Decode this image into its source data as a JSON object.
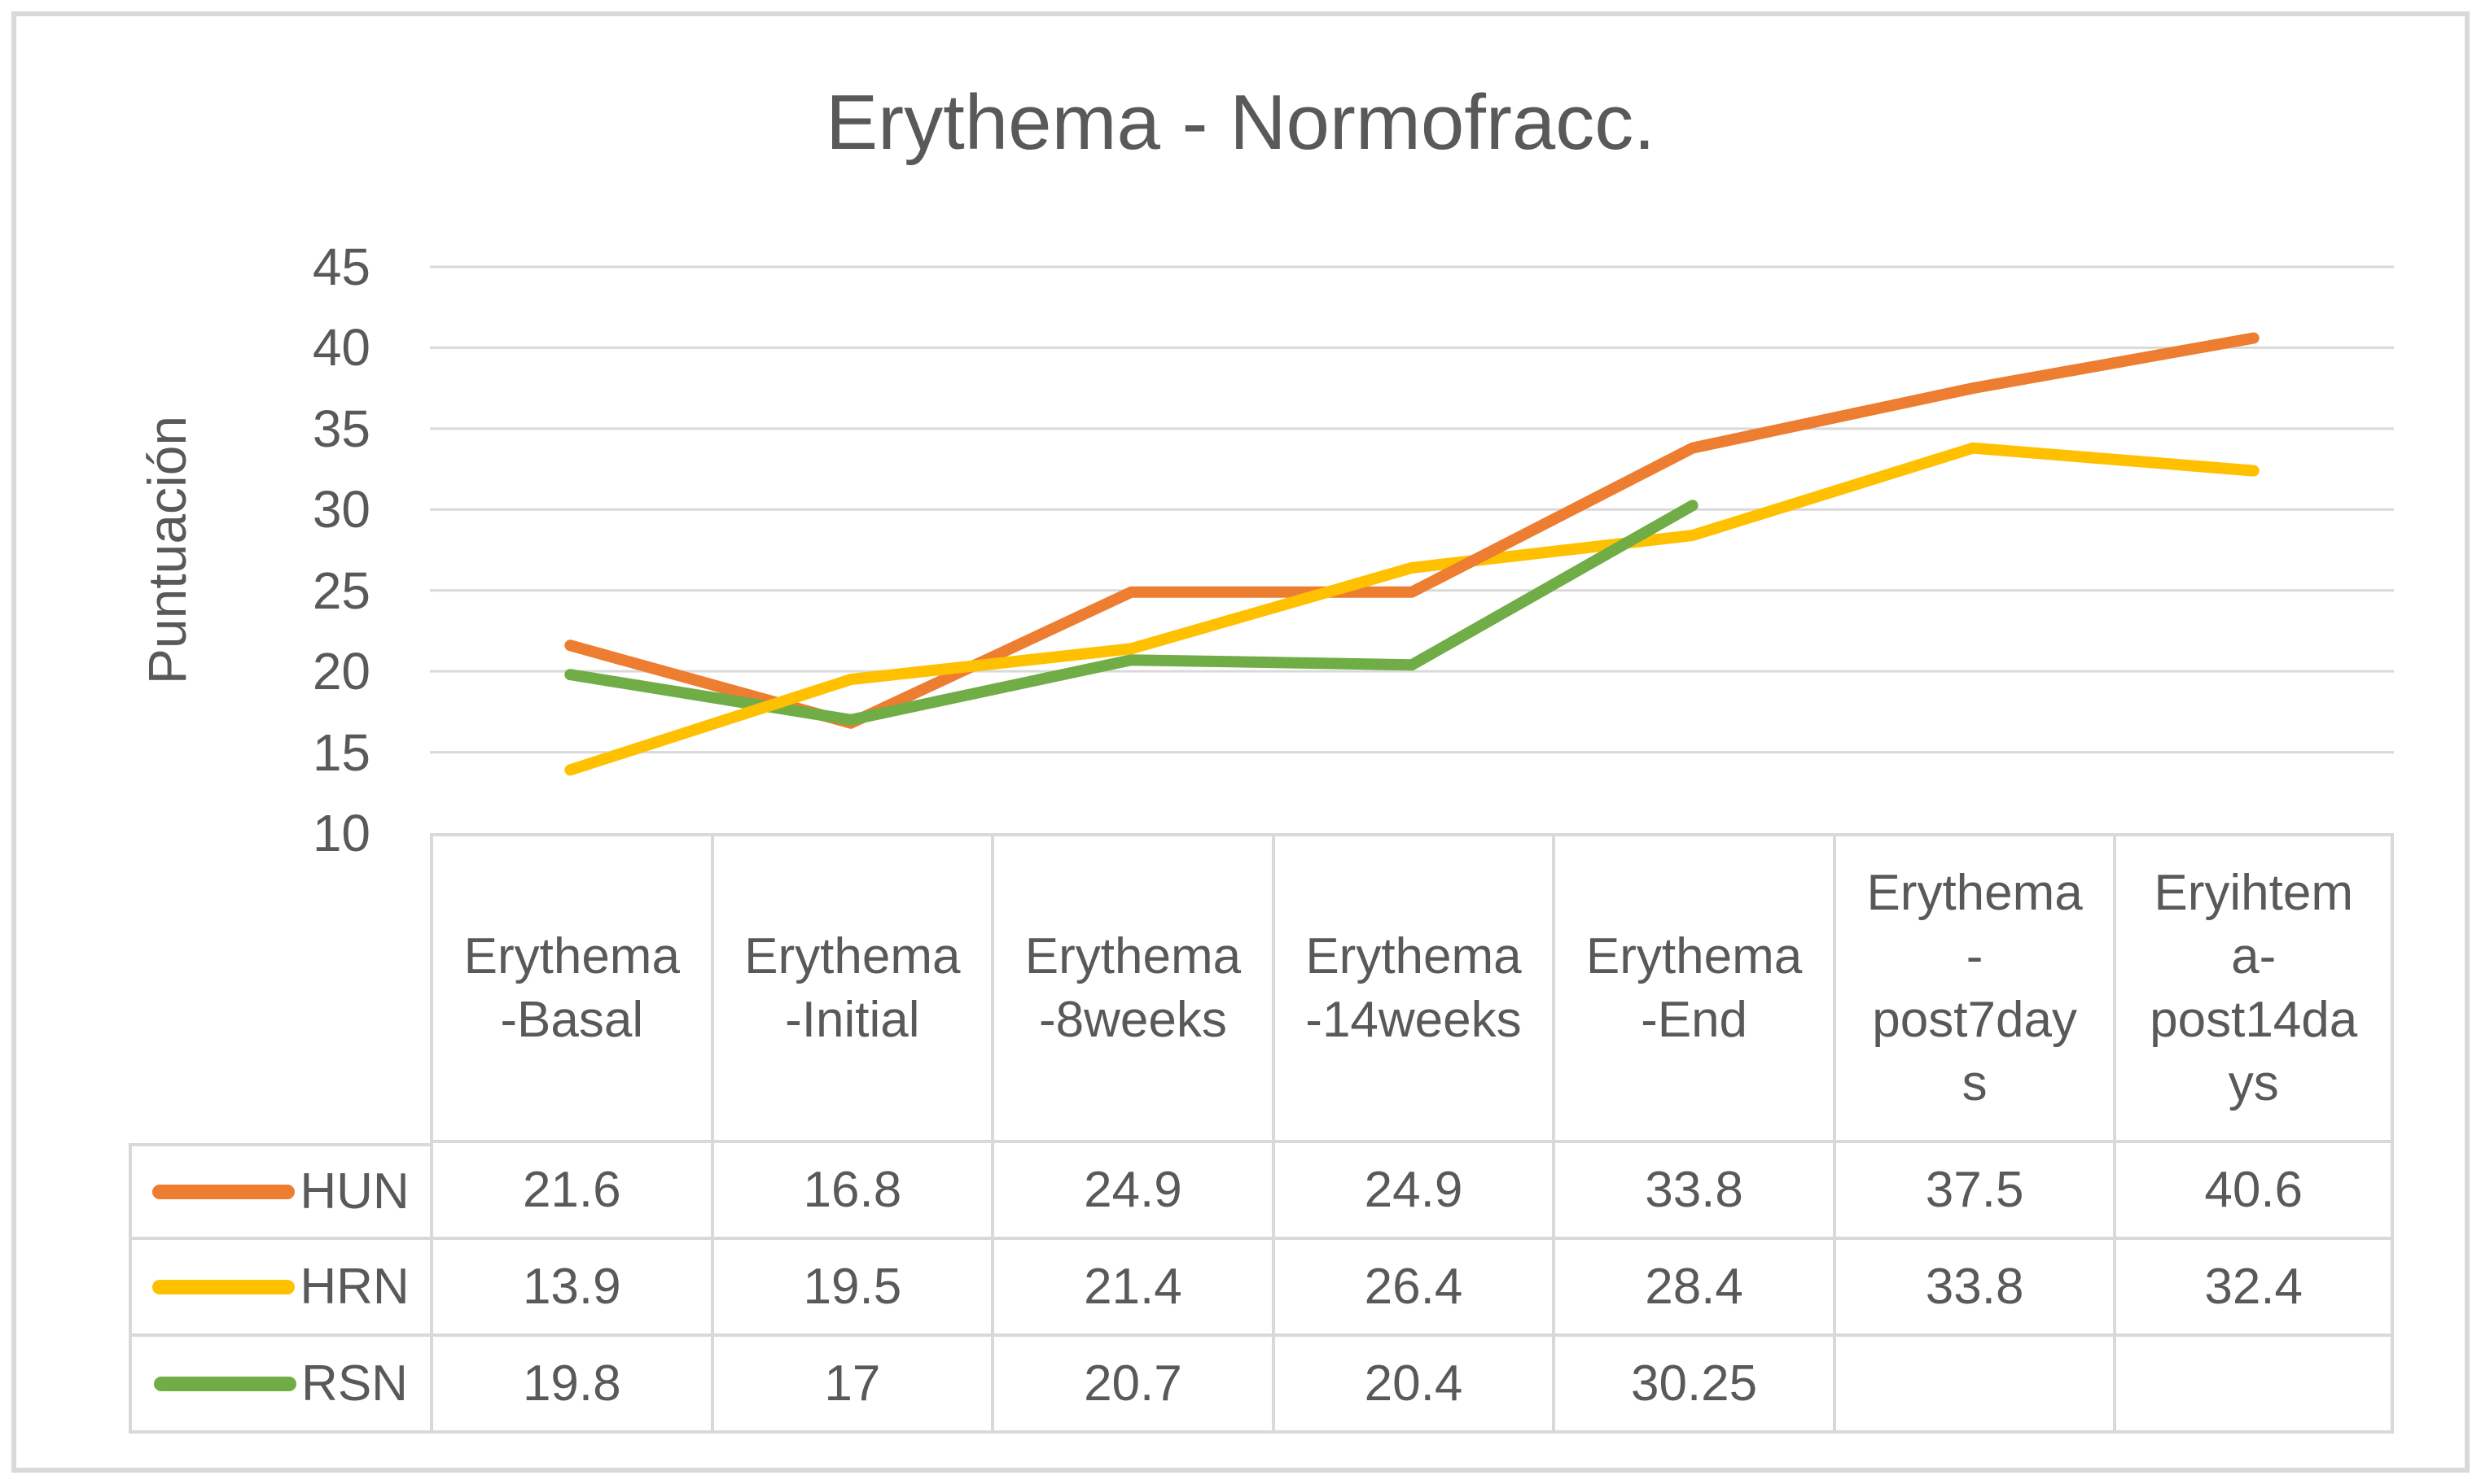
{
  "title": "Erythema - Normofracc.",
  "y_axis": {
    "label": "Puntuación",
    "ticks": [
      45,
      40,
      35,
      30,
      25,
      20,
      15,
      10
    ]
  },
  "chart_data": {
    "type": "line",
    "title": "Erythema - Normofracc.",
    "xlabel": "",
    "ylabel": "Puntuación",
    "ylim": [
      10,
      45
    ],
    "ytick_step": 5,
    "grid": true,
    "legend_position": "data-table-left",
    "categories": [
      "Erythema-Basal",
      "Erythema-Initial",
      "Erythema-8weeks",
      "Erythema-14weeks",
      "Erythema-End",
      "Erythema-post7days",
      "Eryihtema-post14days"
    ],
    "series": [
      {
        "name": "HUN",
        "color": "#ED7D31",
        "values": [
          21.6,
          16.8,
          24.9,
          24.9,
          33.8,
          37.5,
          40.6
        ]
      },
      {
        "name": "HRN",
        "color": "#FFC000",
        "values": [
          13.9,
          19.5,
          21.4,
          26.4,
          28.4,
          33.8,
          32.4
        ]
      },
      {
        "name": "RSN",
        "color": "#70AD47",
        "values": [
          19.8,
          17,
          20.7,
          20.4,
          30.25,
          null,
          null
        ]
      }
    ]
  },
  "table": {
    "headers": [
      "Erythema\n-Basal",
      "Erythema\n-Initial",
      "Erythema\n-8weeks",
      "Erythema\n-14weeks",
      "Erythema\n-End",
      "Erythema\n-\npost7day\ns",
      "Eryihtem\na-\npost14da\nys"
    ],
    "rows": [
      {
        "name": "HUN",
        "color": "#ED7D31",
        "cells": [
          "21.6",
          "16.8",
          "24.9",
          "24.9",
          "33.8",
          "37.5",
          "40.6"
        ]
      },
      {
        "name": "HRN",
        "color": "#FFC000",
        "cells": [
          "13.9",
          "19.5",
          "21.4",
          "26.4",
          "28.4",
          "33.8",
          "32.4"
        ]
      },
      {
        "name": "RSN",
        "color": "#70AD47",
        "cells": [
          "19.8",
          "17",
          "20.7",
          "20.4",
          "30.25",
          "",
          ""
        ]
      }
    ]
  },
  "colors": {
    "text": "#595959",
    "gridline": "#D9D9D9",
    "table_border": "#D9D9D9",
    "outer_border": "#D9D9D9",
    "background": "#FFFFFF",
    "series_hun": "#ED7D31",
    "series_hrn": "#FFC000",
    "series_rsn": "#70AD47"
  }
}
